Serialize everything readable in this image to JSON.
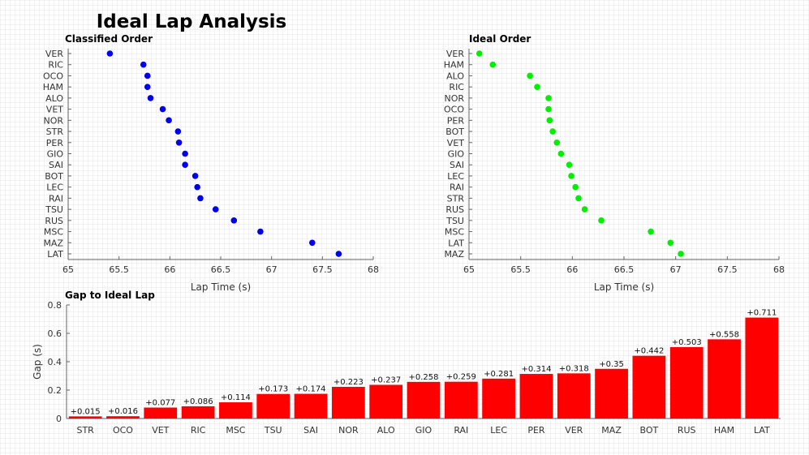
{
  "figure_title": "Ideal Lap Analysis",
  "chart_data": [
    {
      "type": "scatter",
      "title": "Classified Order",
      "xlabel": "Lap Time (s)",
      "ylabel": "",
      "xlim": [
        65,
        68
      ],
      "xticks": [
        "65",
        "65.5",
        "66",
        "66.5",
        "67",
        "67.5",
        "68"
      ],
      "color": "#0000ee",
      "categories": [
        "VER",
        "RIC",
        "OCO",
        "HAM",
        "ALO",
        "VET",
        "NOR",
        "STR",
        "PER",
        "GIO",
        "SAI",
        "BOT",
        "LEC",
        "RAI",
        "TSU",
        "RUS",
        "MSC",
        "MAZ",
        "LAT"
      ],
      "values": [
        65.41,
        65.74,
        65.78,
        65.78,
        65.81,
        65.93,
        65.99,
        66.08,
        66.09,
        66.15,
        66.15,
        66.25,
        66.27,
        66.3,
        66.45,
        66.63,
        66.89,
        67.4,
        67.66
      ]
    },
    {
      "type": "scatter",
      "title": "Ideal Order",
      "xlabel": "Lap Time (s)",
      "ylabel": "",
      "xlim": [
        65,
        68
      ],
      "xticks": [
        "65",
        "65.5",
        "66",
        "66.5",
        "67",
        "67.5",
        "68"
      ],
      "color": "#00ee00",
      "categories": [
        "VER",
        "HAM",
        "ALO",
        "RIC",
        "NOR",
        "OCO",
        "PER",
        "BOT",
        "VET",
        "GIO",
        "SAI",
        "LEC",
        "RAI",
        "STR",
        "RUS",
        "TSU",
        "MSC",
        "LAT",
        "MAZ"
      ],
      "values": [
        65.1,
        65.23,
        65.59,
        65.66,
        65.77,
        65.77,
        65.78,
        65.81,
        65.85,
        65.89,
        65.97,
        65.99,
        66.03,
        66.06,
        66.12,
        66.28,
        66.76,
        66.95,
        67.05
      ]
    },
    {
      "type": "bar",
      "title": "Gap to Ideal Lap",
      "xlabel": "",
      "ylabel": "Gap (s)",
      "ylim": [
        0,
        0.8
      ],
      "yticks": [
        "0",
        "0.2",
        "0.4",
        "0.6",
        "0.8"
      ],
      "color": "#ff0000",
      "categories": [
        "STR",
        "OCO",
        "VET",
        "RIC",
        "MSC",
        "TSU",
        "SAI",
        "NOR",
        "ALO",
        "GIO",
        "RAI",
        "LEC",
        "PER",
        "VER",
        "MAZ",
        "BOT",
        "RUS",
        "HAM",
        "LAT"
      ],
      "values": [
        0.015,
        0.016,
        0.077,
        0.086,
        0.114,
        0.173,
        0.174,
        0.223,
        0.237,
        0.258,
        0.259,
        0.281,
        0.314,
        0.318,
        0.35,
        0.442,
        0.503,
        0.558,
        0.711
      ],
      "labels": [
        "+0.015",
        "+0.016",
        "+0.077",
        "+0.086",
        "+0.114",
        "+0.173",
        "+0.174",
        "+0.223",
        "+0.237",
        "+0.258",
        "+0.259",
        "+0.281",
        "+0.314",
        "+0.318",
        "+0.35",
        "+0.442",
        "+0.503",
        "+0.558",
        "+0.711"
      ]
    }
  ]
}
